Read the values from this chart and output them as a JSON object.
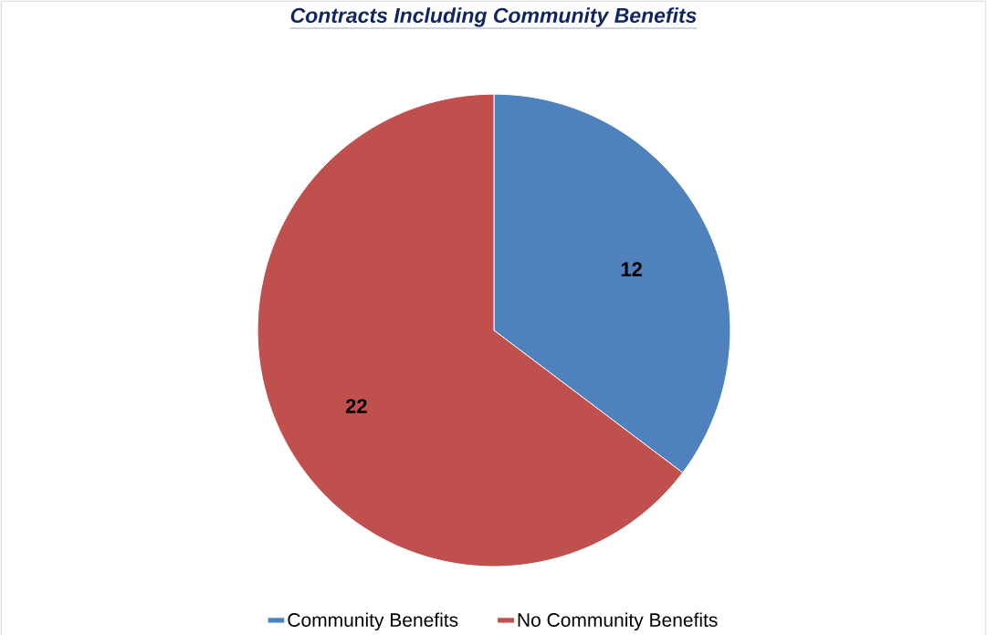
{
  "chart_data": {
    "type": "pie",
    "title": "Contracts Including Community Benefits",
    "categories": [
      "Community Benefits",
      "No Community Benefits"
    ],
    "values": [
      12,
      22
    ],
    "colors": [
      "#4f81bd",
      "#c0504d"
    ],
    "data_labels": true,
    "legend": "bottom"
  }
}
